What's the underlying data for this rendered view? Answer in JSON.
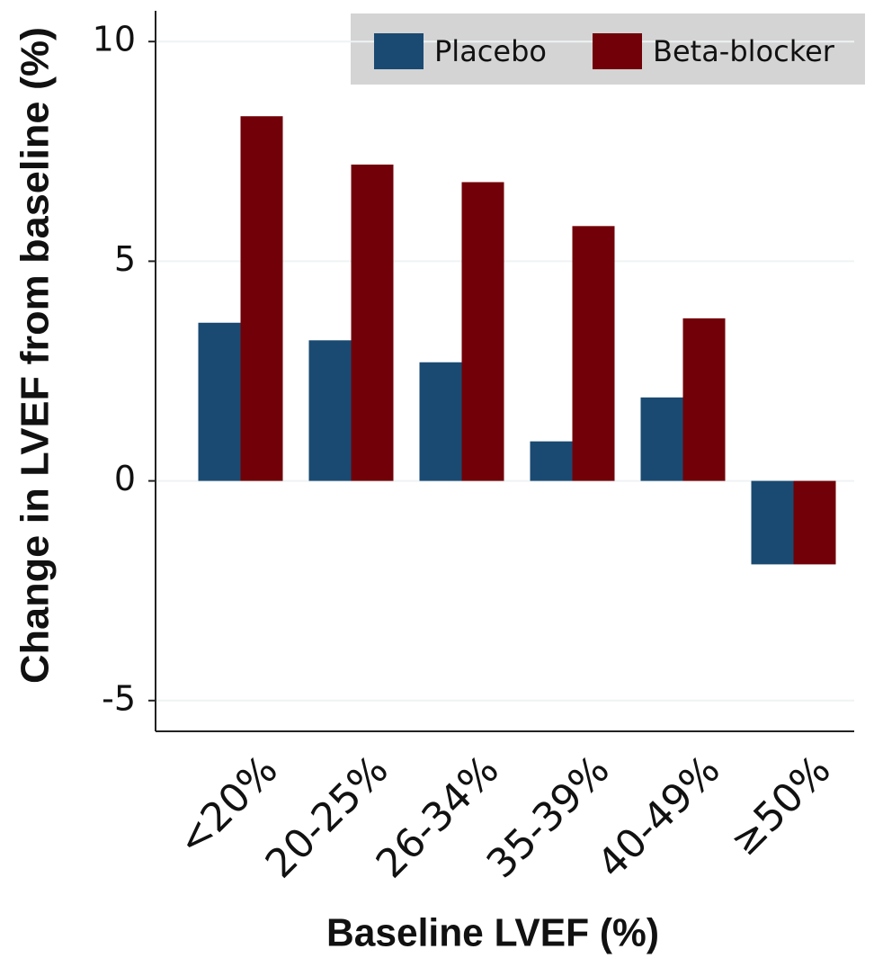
{
  "chart_data": {
    "type": "bar",
    "x_label": "Baseline LVEF (%)",
    "y_label": "Change in LVEF from baseline (%)",
    "categories": [
      "<20%",
      "20-25%",
      "26-34%",
      "35-39%",
      "40-49%",
      "≥50%"
    ],
    "series": [
      {
        "name": "Placebo",
        "color": "#1a4a72",
        "values": [
          3.6,
          3.2,
          2.7,
          0.9,
          1.9,
          -1.9
        ]
      },
      {
        "name": "Beta-blocker",
        "color": "#720008",
        "values": [
          8.3,
          7.2,
          6.8,
          5.8,
          3.7,
          -1.9
        ]
      }
    ],
    "ylim": [
      -5.7,
      10.7
    ],
    "yticks": [
      -5,
      0,
      5,
      10
    ],
    "grid": true,
    "legend": "top-right"
  }
}
